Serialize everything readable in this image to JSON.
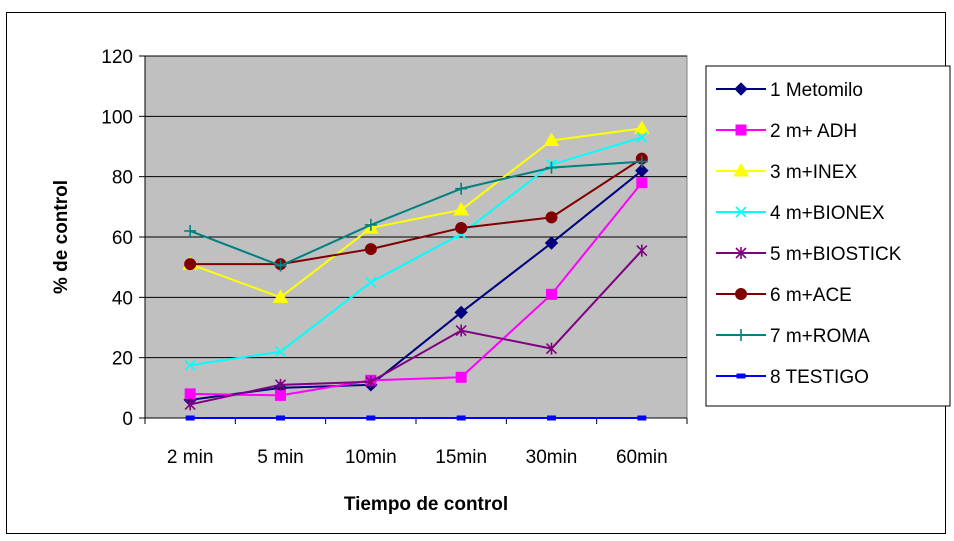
{
  "chart_data": {
    "type": "line",
    "categories": [
      "2 min",
      "5 min",
      "10min",
      "15min",
      "30min",
      "60min"
    ],
    "xlabel": "Tiempo de control",
    "ylabel": "% de control",
    "ylim": [
      0,
      120
    ],
    "yticks": [
      0,
      20,
      40,
      60,
      80,
      100,
      120
    ],
    "grid": true,
    "plot_background": "#c0c0c0",
    "legend_position": "right",
    "series": [
      {
        "name": "1 Metomilo",
        "color": "#000080",
        "marker": "diamond",
        "values": [
          6,
          10,
          11,
          35,
          58,
          82
        ]
      },
      {
        "name": "2 m+ ADH",
        "color": "#ff00ff",
        "marker": "square",
        "values": [
          8,
          7.5,
          12.5,
          13.5,
          41,
          78
        ]
      },
      {
        "name": "3 m+INEX",
        "color": "#ffff00",
        "marker": "triangle",
        "values": [
          51,
          40,
          63,
          69,
          92,
          96
        ]
      },
      {
        "name": "4 m+BIONEX",
        "color": "#00ffff",
        "marker": "x",
        "values": [
          17.5,
          22,
          45,
          61,
          84,
          93
        ]
      },
      {
        "name": "5 m+BIOSTICK",
        "color": "#800080",
        "marker": "star",
        "values": [
          4.5,
          11,
          12,
          29,
          23,
          55.5
        ]
      },
      {
        "name": "6 m+ACE",
        "color": "#800000",
        "marker": "circle",
        "values": [
          51,
          51,
          56,
          63,
          66.5,
          86
        ]
      },
      {
        "name": "7 m+ROMA",
        "color": "#008080",
        "marker": "plus",
        "values": [
          62,
          50.5,
          64,
          76,
          83,
          85
        ]
      },
      {
        "name": "8 TESTIGO",
        "color": "#0000ff",
        "marker": "dash",
        "values": [
          0,
          0,
          0,
          0,
          0,
          0
        ]
      }
    ]
  }
}
